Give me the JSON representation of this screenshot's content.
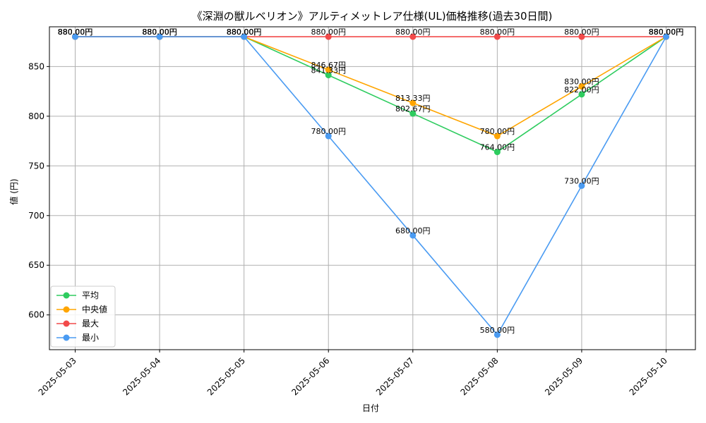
{
  "chart_data": {
    "type": "line",
    "title": "《深淵の獣ルベリオン》アルティメットレア仕様(UL)価格推移(過去30日間)",
    "xlabel": "日付",
    "ylabel": "値 (円)",
    "categories": [
      "2025-05-03",
      "2025-05-04",
      "2025-05-05",
      "2025-05-06",
      "2025-05-07",
      "2025-05-08",
      "2025-05-09",
      "2025-05-10"
    ],
    "ylim": [
      565,
      890
    ],
    "yticks": [
      600,
      650,
      700,
      750,
      800,
      850
    ],
    "grid": true,
    "legend_position": "lower-left",
    "series": [
      {
        "name": "平均",
        "color": "#2ecc5f",
        "values": [
          880,
          880,
          880,
          841.33,
          802.67,
          764.0,
          822.0,
          880
        ],
        "labels": [
          "880.00円",
          "880.00円",
          "880.00円",
          "841.33円",
          "802.67円",
          "764.00円",
          "822.00円",
          "880.00円"
        ]
      },
      {
        "name": "中央値",
        "color": "#ffa500",
        "values": [
          880,
          880,
          880,
          846.67,
          813.33,
          780.0,
          830.0,
          880
        ],
        "labels": [
          "880.00円",
          "880.00円",
          "880.00円",
          "846.67円",
          "813.33円",
          "780.00円",
          "830.00円",
          "880.00円"
        ]
      },
      {
        "name": "最大",
        "color": "#f24a4a",
        "values": [
          880,
          880,
          880,
          880,
          880,
          880,
          880,
          880
        ],
        "labels": [
          "880.00円",
          "880.00円",
          "880.00円",
          "880.00円",
          "880.00円",
          "880.00円",
          "880.00円",
          "880.00円"
        ]
      },
      {
        "name": "最小",
        "color": "#4a9bf2",
        "values": [
          880,
          880,
          880,
          780.0,
          680.0,
          580.0,
          730.0,
          880
        ],
        "labels": [
          "880.00円",
          "880.00円",
          "880.00円",
          "780.00円",
          "680.00円",
          "580.00円",
          "730.00円",
          "880.00円"
        ]
      }
    ]
  }
}
